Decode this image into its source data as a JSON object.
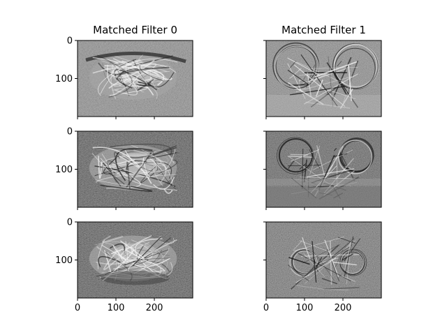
{
  "figure": {
    "background": "#ffffff"
  },
  "chart_data": [
    {
      "type": "heatmap",
      "title": "Matched Filter 0",
      "panel": "row-1-col-1",
      "xlim": [
        0,
        300
      ],
      "ylim": [
        200,
        0
      ],
      "yticks": [
        0,
        100
      ],
      "yticklabels": [
        "0",
        "100"
      ],
      "xticks": [
        0,
        100,
        200
      ],
      "xticklabels": [],
      "colormap": "gray",
      "content": "car-shaped filter pattern"
    },
    {
      "type": "heatmap",
      "title": "Matched Filter 1",
      "panel": "row-1-col-2",
      "xlim": [
        0,
        300
      ],
      "ylim": [
        200,
        0
      ],
      "yticks": [
        0,
        100
      ],
      "yticklabels": [],
      "xticks": [
        0,
        100,
        200
      ],
      "xticklabels": [],
      "colormap": "gray",
      "content": "bicycle-shaped filter pattern"
    },
    {
      "type": "heatmap",
      "title": "",
      "panel": "row-2-col-1",
      "xlim": [
        0,
        300
      ],
      "ylim": [
        200,
        0
      ],
      "yticks": [
        0,
        100
      ],
      "yticklabels": [
        "0",
        "100"
      ],
      "xticks": [
        0,
        100,
        200
      ],
      "xticklabels": [],
      "colormap": "gray",
      "content": "car-shaped filter pattern"
    },
    {
      "type": "heatmap",
      "title": "",
      "panel": "row-2-col-2",
      "xlim": [
        0,
        300
      ],
      "ylim": [
        200,
        0
      ],
      "yticks": [
        0,
        100
      ],
      "yticklabels": [],
      "xticks": [
        0,
        100,
        200
      ],
      "xticklabels": [],
      "colormap": "gray",
      "content": "bicycle-shaped filter pattern"
    },
    {
      "type": "heatmap",
      "title": "",
      "panel": "row-3-col-1",
      "xlim": [
        0,
        300
      ],
      "ylim": [
        200,
        0
      ],
      "yticks": [
        0,
        100
      ],
      "yticklabels": [
        "0",
        "100"
      ],
      "xticks": [
        0,
        100,
        200
      ],
      "xticklabels": [
        "0",
        "100",
        "200"
      ],
      "colormap": "gray",
      "content": "car-shaped filter pattern"
    },
    {
      "type": "heatmap",
      "title": "",
      "panel": "row-3-col-2",
      "xlim": [
        0,
        300
      ],
      "ylim": [
        200,
        0
      ],
      "yticks": [
        0,
        100
      ],
      "yticklabels": [],
      "xticks": [
        0,
        100,
        200
      ],
      "xticklabels": [
        "0",
        "100",
        "200"
      ],
      "colormap": "gray",
      "content": "bicycle-shaped filter pattern"
    }
  ]
}
